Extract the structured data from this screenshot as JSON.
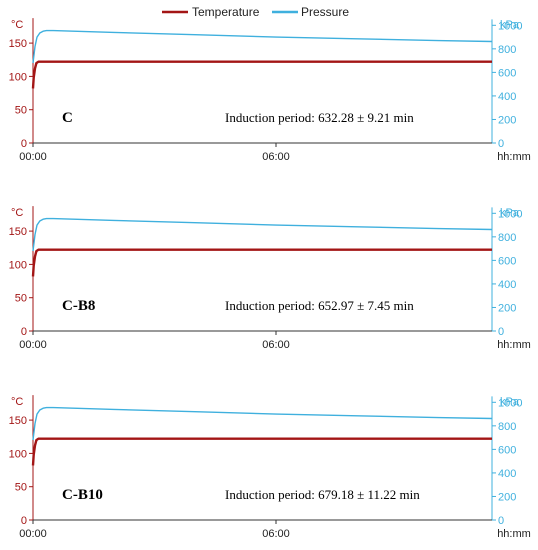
{
  "legend": {
    "placement": "top-center",
    "items": [
      {
        "label": "Temperature",
        "color": "#a31515"
      },
      {
        "label": "Pressure",
        "color": "#3fb0de"
      }
    ]
  },
  "colors": {
    "temperature": "#a31515",
    "pressure": "#3fb0de",
    "axis_text": "#222222"
  },
  "chart_data": [
    {
      "type": "line",
      "sample_label": "C",
      "annotation": "Induction period: 632.28 ± 9.21 min",
      "left_axis": {
        "unit": "°C",
        "range": [
          0,
          187.5
        ],
        "ticks": [
          "0",
          "50",
          "100",
          "150"
        ]
      },
      "right_axis": {
        "unit": "kPa",
        "range": [
          0,
          1050
        ],
        "ticks": [
          "0",
          "200",
          "400",
          "600",
          "800",
          "1000"
        ]
      },
      "x_axis": {
        "unit": "hh:mm",
        "range_min": [
          0,
          680
        ],
        "ticks": [
          {
            "label": "00:00",
            "min": 0
          },
          {
            "label": "06:00",
            "min": 360
          }
        ]
      },
      "grid": false,
      "series": [
        {
          "name": "Temperature",
          "axis": "left",
          "x": [
            0,
            1,
            3,
            5,
            8,
            680
          ],
          "y": [
            82,
            98,
            112,
            120,
            122,
            122
          ]
        },
        {
          "name": "Pressure",
          "axis": "right",
          "x": [
            0,
            3,
            6,
            10,
            15,
            20,
            30,
            60,
            120,
            240,
            360,
            480,
            600,
            680
          ],
          "y": [
            680,
            820,
            900,
            935,
            950,
            955,
            955,
            950,
            940,
            920,
            900,
            885,
            870,
            862
          ]
        }
      ]
    },
    {
      "type": "line",
      "sample_label": "C-B8",
      "annotation": "Induction period: 652.97 ± 7.45 min",
      "left_axis": {
        "unit": "°C",
        "range": [
          0,
          187.5
        ],
        "ticks": [
          "0",
          "50",
          "100",
          "150"
        ]
      },
      "right_axis": {
        "unit": "kPa",
        "range": [
          0,
          1050
        ],
        "ticks": [
          "0",
          "200",
          "400",
          "600",
          "800",
          "1000"
        ]
      },
      "x_axis": {
        "unit": "hh:mm",
        "range_min": [
          0,
          680
        ],
        "ticks": [
          {
            "label": "00:00",
            "min": 0
          },
          {
            "label": "06:00",
            "min": 360
          }
        ]
      },
      "grid": false,
      "series": [
        {
          "name": "Temperature",
          "axis": "left",
          "x": [
            0,
            1,
            3,
            5,
            8,
            680
          ],
          "y": [
            82,
            98,
            112,
            120,
            122,
            122
          ]
        },
        {
          "name": "Pressure",
          "axis": "right",
          "x": [
            0,
            3,
            6,
            10,
            15,
            20,
            30,
            60,
            120,
            240,
            360,
            480,
            600,
            680
          ],
          "y": [
            680,
            820,
            900,
            935,
            950,
            955,
            955,
            950,
            940,
            920,
            900,
            885,
            870,
            862
          ]
        }
      ]
    },
    {
      "type": "line",
      "sample_label": "C-B10",
      "annotation": "Induction period: 679.18 ± 11.22 min",
      "left_axis": {
        "unit": "°C",
        "range": [
          0,
          187.5
        ],
        "ticks": [
          "0",
          "50",
          "100",
          "150"
        ]
      },
      "right_axis": {
        "unit": "kPa",
        "range": [
          0,
          1050
        ],
        "ticks": [
          "0",
          "200",
          "400",
          "600",
          "800",
          "1000"
        ]
      },
      "x_axis": {
        "unit": "hh:mm",
        "range_min": [
          0,
          680
        ],
        "ticks": [
          {
            "label": "00:00",
            "min": 0
          },
          {
            "label": "06:00",
            "min": 360
          }
        ]
      },
      "grid": false,
      "series": [
        {
          "name": "Temperature",
          "axis": "left",
          "x": [
            0,
            1,
            3,
            5,
            8,
            680
          ],
          "y": [
            82,
            98,
            112,
            120,
            122,
            122
          ]
        },
        {
          "name": "Pressure",
          "axis": "right",
          "x": [
            0,
            3,
            6,
            10,
            15,
            20,
            30,
            60,
            120,
            240,
            360,
            480,
            600,
            680
          ],
          "y": [
            680,
            820,
            900,
            935,
            950,
            955,
            955,
            950,
            940,
            920,
            900,
            885,
            870,
            862
          ]
        }
      ]
    }
  ]
}
